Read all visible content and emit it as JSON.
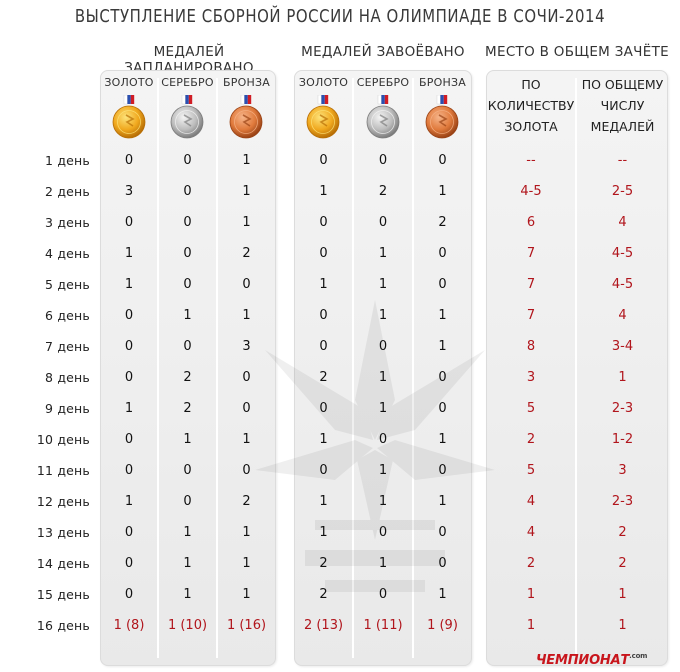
{
  "title": "ВЫСТУПЛЕНИЕ СБОРНОЙ РОССИИ НА ОЛИМПИАДЕ В СОЧИ-2014",
  "groups": {
    "planned": "МЕДАЛЕЙ ЗАПЛАНИРОВАНО",
    "won": "МЕДАЛЕЙ ЗАВОЁВАНО",
    "place": "МЕСТО В ОБЩЕМ ЗАЧЁТЕ"
  },
  "medal_columns": [
    "ЗОЛОТО",
    "СЕРЕБРО",
    "БРОНЗА"
  ],
  "place_columns": {
    "gold": [
      "ПО",
      "КОЛИЧЕСТВУ",
      "ЗОЛОТА"
    ],
    "total": [
      "ПО ОБЩЕМУ",
      "ЧИСЛУ",
      "МЕДАЛЕЙ"
    ]
  },
  "medal_colors": {
    "gold": "#f0a81e",
    "silver": "#bdbdbd",
    "bronze": "#e07a3c"
  },
  "accent_color": "#b1151c",
  "days": [
    "1 день",
    "2 день",
    "3 день",
    "4 день",
    "5 день",
    "6 день",
    "7 день",
    "8 день",
    "9 день",
    "10 день",
    "11 день",
    "12 день",
    "13 день",
    "14 день",
    "15 день",
    "16 день"
  ],
  "planned": [
    [
      "0",
      "0",
      "1"
    ],
    [
      "3",
      "0",
      "1"
    ],
    [
      "0",
      "0",
      "1"
    ],
    [
      "1",
      "0",
      "2"
    ],
    [
      "1",
      "0",
      "0"
    ],
    [
      "0",
      "1",
      "1"
    ],
    [
      "0",
      "0",
      "3"
    ],
    [
      "0",
      "2",
      "0"
    ],
    [
      "1",
      "2",
      "0"
    ],
    [
      "0",
      "1",
      "1"
    ],
    [
      "0",
      "0",
      "0"
    ],
    [
      "1",
      "0",
      "2"
    ],
    [
      "0",
      "1",
      "1"
    ],
    [
      "0",
      "1",
      "1"
    ],
    [
      "0",
      "1",
      "1"
    ],
    [
      "1 (8)",
      "1 (10)",
      "1 (16)"
    ]
  ],
  "won": [
    [
      "0",
      "0",
      "0"
    ],
    [
      "1",
      "2",
      "1"
    ],
    [
      "0",
      "0",
      "2"
    ],
    [
      "0",
      "1",
      "0"
    ],
    [
      "1",
      "1",
      "0"
    ],
    [
      "0",
      "1",
      "1"
    ],
    [
      "0",
      "0",
      "1"
    ],
    [
      "2",
      "1",
      "0"
    ],
    [
      "0",
      "1",
      "0"
    ],
    [
      "1",
      "0",
      "1"
    ],
    [
      "0",
      "1",
      "0"
    ],
    [
      "1",
      "1",
      "1"
    ],
    [
      "1",
      "0",
      "0"
    ],
    [
      "2",
      "1",
      "0"
    ],
    [
      "2",
      "0",
      "1"
    ],
    [
      "2 (13)",
      "1 (11)",
      "1 (9)"
    ]
  ],
  "place": [
    [
      "--",
      "--"
    ],
    [
      "4-5",
      "2-5"
    ],
    [
      "6",
      "4"
    ],
    [
      "7",
      "4-5"
    ],
    [
      "7",
      "4-5"
    ],
    [
      "7",
      "4"
    ],
    [
      "8",
      "3-4"
    ],
    [
      "3",
      "1"
    ],
    [
      "5",
      "2-3"
    ],
    [
      "2",
      "1-2"
    ],
    [
      "5",
      "3"
    ],
    [
      "4",
      "2-3"
    ],
    [
      "4",
      "2"
    ],
    [
      "2",
      "2"
    ],
    [
      "1",
      "1"
    ],
    [
      "1",
      "1"
    ]
  ],
  "logo": {
    "text": "ЧЕМПИОНАТ",
    "suffix": ".com"
  }
}
